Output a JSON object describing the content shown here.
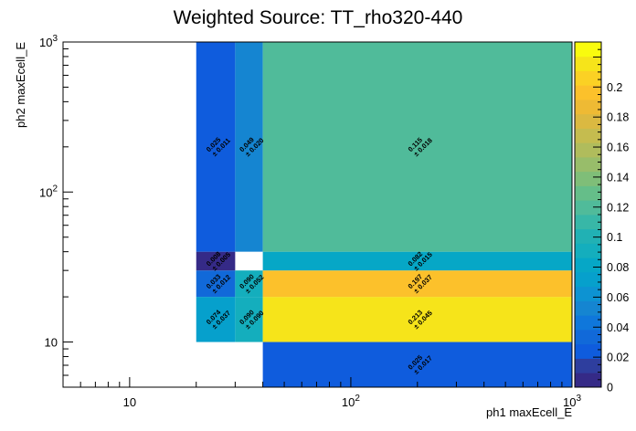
{
  "chart_data": {
    "type": "heatmap",
    "title": "Weighted Source: TT_rho320-440",
    "xlabel": "ph1 maxEcell_E",
    "ylabel": "ph2 maxEcell_E",
    "x_scale": "log",
    "y_scale": "log",
    "xlim": [
      5,
      1000
    ],
    "ylim": [
      5,
      1000
    ],
    "x_ticks": [
      {
        "value": 10,
        "label": "10"
      },
      {
        "value": 100,
        "label": "10²"
      },
      {
        "value": 1000,
        "label": "10³"
      }
    ],
    "y_ticks": [
      {
        "value": 10,
        "label": "10"
      },
      {
        "value": 100,
        "label": "10²"
      },
      {
        "value": 1000,
        "label": "10³"
      }
    ],
    "x_edges": [
      20,
      30,
      40,
      1000
    ],
    "y_edges": [
      10,
      20,
      30,
      40,
      1000
    ],
    "cells": [
      {
        "x0": 20,
        "x1": 30,
        "y0": 10,
        "y1": 20,
        "value": 0.074,
        "value_label": "0.074",
        "error_label": "± 0.037"
      },
      {
        "x0": 30,
        "x1": 40,
        "y0": 10,
        "y1": 20,
        "value": 0.09,
        "value_label": "0.090",
        "error_label": "± 0.090"
      },
      {
        "x0": 40,
        "x1": 1000,
        "y0": 10,
        "y1": 20,
        "value": 0.213,
        "value_label": "0.213",
        "error_label": "± 0.045"
      },
      {
        "x0": 20,
        "x1": 30,
        "y0": 20,
        "y1": 30,
        "value": 0.033,
        "value_label": "0.033",
        "error_label": "± 0.012"
      },
      {
        "x0": 30,
        "x1": 40,
        "y0": 20,
        "y1": 30,
        "value": 0.09,
        "value_label": "0.090",
        "error_label": "± 0.052"
      },
      {
        "x0": 40,
        "x1": 1000,
        "y0": 20,
        "y1": 30,
        "value": 0.197,
        "value_label": "0.197",
        "error_label": "± 0.037"
      },
      {
        "x0": 20,
        "x1": 30,
        "y0": 30,
        "y1": 40,
        "value": 0.008,
        "value_label": "0.008",
        "error_label": "± 0.005"
      },
      {
        "x0": 40,
        "x1": 1000,
        "y0": 30,
        "y1": 40,
        "value": 0.082,
        "value_label": "0.082",
        "error_label": "± 0.015"
      },
      {
        "x0": 20,
        "x1": 30,
        "y0": 40,
        "y1": 1000,
        "value": 0.025,
        "value_label": "0.025",
        "error_label": "± 0.011"
      },
      {
        "x0": 30,
        "x1": 40,
        "y0": 40,
        "y1": 1000,
        "value": 0.049,
        "value_label": "0.049",
        "error_label": "± 0.020"
      },
      {
        "x0": 40,
        "x1": 1000,
        "y0": 40,
        "y1": 1000,
        "value": 0.115,
        "value_label": "0.115",
        "error_label": "± 0.018"
      },
      {
        "x0": 40,
        "x1": 1000,
        "y0": 5,
        "y1": 10,
        "value": 0.025,
        "value_label": "0.025",
        "error_label": "± 0.017"
      }
    ],
    "colorbar": {
      "min": 0,
      "max": 0.23,
      "ticks": [
        {
          "value": 0,
          "label": "0"
        },
        {
          "value": 0.02,
          "label": "0.02"
        },
        {
          "value": 0.04,
          "label": "0.04"
        },
        {
          "value": 0.06,
          "label": "0.06"
        },
        {
          "value": 0.08,
          "label": "0.08"
        },
        {
          "value": 0.1,
          "label": "0.1"
        },
        {
          "value": 0.12,
          "label": "0.12"
        },
        {
          "value": 0.14,
          "label": "0.14"
        },
        {
          "value": 0.16,
          "label": "0.16"
        },
        {
          "value": 0.18,
          "label": "0.18"
        },
        {
          "value": 0.2,
          "label": "0.2"
        }
      ],
      "palette": [
        "#352a87",
        "#2e3e9e",
        "#0f5cdd",
        "#1169d9",
        "#0f77db",
        "#1585d1",
        "#0d93d2",
        "#06a0cc",
        "#06a7c6",
        "#14aebd",
        "#21b1b4",
        "#38b7a7",
        "#50bb9a",
        "#65be89",
        "#7fbe78",
        "#98bd6a",
        "#b0bc5c",
        "#c5bc4f",
        "#dbb941",
        "#eeba34",
        "#fcc12b",
        "#fbd124",
        "#f6e41a",
        "#f9fb0e"
      ]
    }
  }
}
